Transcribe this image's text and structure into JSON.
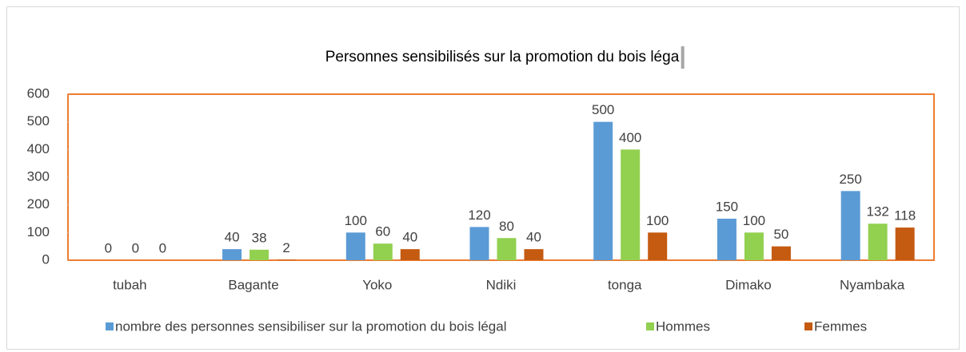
{
  "chart_data": {
    "type": "bar",
    "title": "Personnes sensibilisés sur la promotion du bois léga",
    "categories": [
      "tubah",
      "Bagante",
      "Yoko",
      "Ndiki",
      "tonga",
      "Dimako",
      "Nyambaka"
    ],
    "series": [
      {
        "name": "nombre  des personnes sensibiliser  sur la promotion du bois légal",
        "color": "#5b9bd5",
        "values": [
          0,
          40,
          100,
          120,
          500,
          150,
          250
        ]
      },
      {
        "name": "Hommes",
        "color": "#92d050",
        "values": [
          0,
          38,
          60,
          80,
          400,
          100,
          132
        ]
      },
      {
        "name": "Femmes",
        "color": "#c55a11",
        "values": [
          0,
          2,
          40,
          40,
          100,
          50,
          118
        ]
      }
    ],
    "ylim": [
      0,
      600
    ],
    "yticks": [
      0,
      100,
      200,
      300,
      400,
      500,
      600
    ]
  }
}
